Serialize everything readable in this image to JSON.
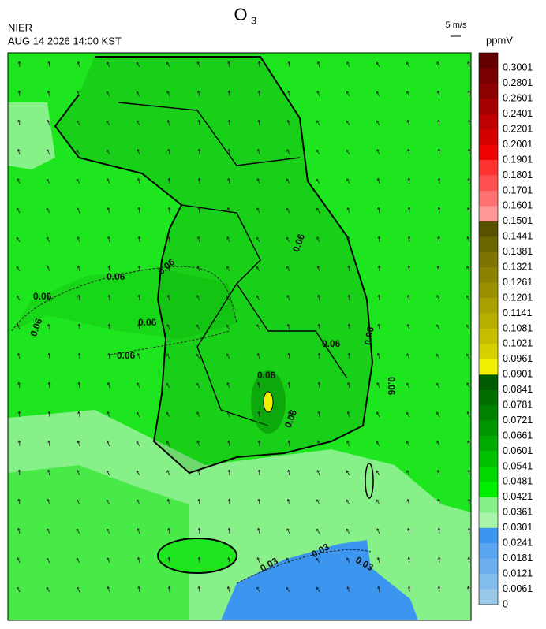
{
  "header": {
    "title": {
      "main": "O",
      "sub": "3"
    },
    "source": "NIER",
    "timestamp": "AUG 14 2026 14:00 KST",
    "wind_scale": "5 m/s",
    "unit": "ppmV"
  },
  "colorbar": {
    "labels": [
      0.3001,
      0.2801,
      0.2601,
      0.2401,
      0.2201,
      0.2001,
      0.1901,
      0.1801,
      0.1701,
      0.1601,
      0.1501,
      0.1441,
      0.1381,
      0.1321,
      0.1261,
      0.1201,
      0.1141,
      0.1081,
      0.1021,
      0.0961,
      0.0901,
      0.0841,
      0.0781,
      0.0721,
      0.0661,
      0.0601,
      0.0541,
      0.0481,
      0.0421,
      0.0361,
      0.0301,
      0.0241,
      0.0181,
      0.0121,
      0.0061,
      0
    ],
    "colors": [
      "#640000",
      "#780000",
      "#8c0000",
      "#a50000",
      "#be0000",
      "#d20000",
      "#f00000",
      "#ff3232",
      "#ff5050",
      "#ff7070",
      "#ff9999",
      "#5a5000",
      "#6b6400",
      "#7d7300",
      "#8c8200",
      "#9b9100",
      "#aaa000",
      "#b9af00",
      "#c8be00",
      "#d7d000",
      "#f0f000",
      "#005a00",
      "#006e00",
      "#008200",
      "#009600",
      "#00aa00",
      "#00c000",
      "#00d800",
      "#00ee00",
      "#88f088",
      "#a8f4a8",
      "#3c96f0",
      "#5aa5f0",
      "#6eb0ee",
      "#82bcec",
      "#9ac8e8"
    ]
  },
  "contour_labels": [
    "0.06",
    "0.06",
    "0.06",
    "0.06",
    "0.06",
    "0.06",
    "0.06",
    "0.06",
    "0.06",
    "0.06",
    "0.06",
    "0.06",
    "0.03",
    "0.03",
    "0.03"
  ]
}
